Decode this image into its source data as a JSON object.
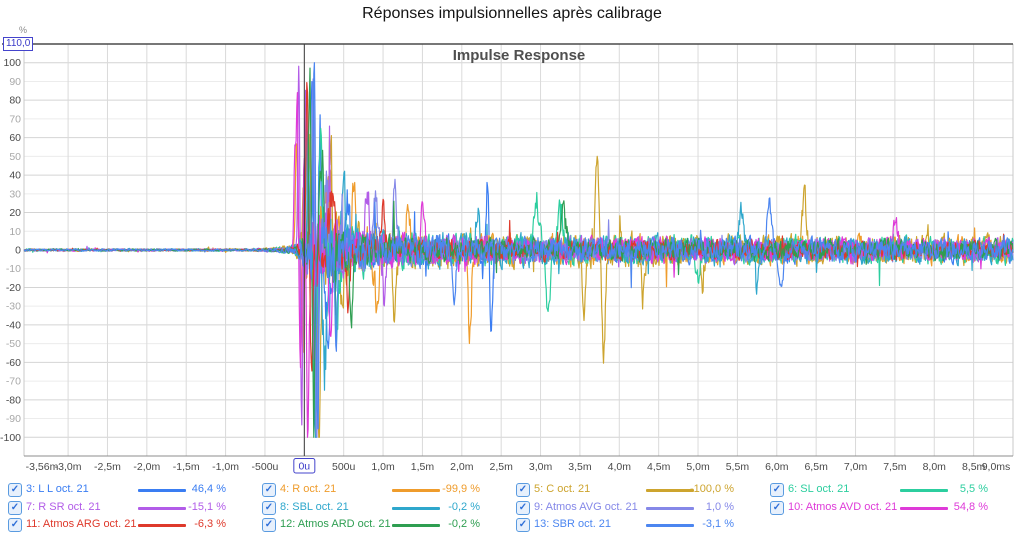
{
  "page": {
    "title": "Réponses impulsionnelles après calibrage"
  },
  "chart_data": {
    "type": "line",
    "title": "Impulse Response",
    "y_axis": {
      "unit": "%",
      "max_box_label": "110,0",
      "min": -110,
      "max": 110,
      "label_min": -100,
      "label_max": 100,
      "minor_step": 10,
      "major_step": 20
    },
    "x_axis": {
      "min": -3.56,
      "max": 9.0,
      "grid_min": -3.0,
      "grid_max": 9.0,
      "grid_step": 0.5,
      "ticks": [
        {
          "t": -3.56,
          "label": "-3,56m"
        },
        {
          "t": -3.0,
          "label": "-3,0m"
        },
        {
          "t": -2.5,
          "label": "-2,5m"
        },
        {
          "t": -2.0,
          "label": "-2,0m"
        },
        {
          "t": -1.5,
          "label": "-1,5m"
        },
        {
          "t": -1.0,
          "label": "-1,0m"
        },
        {
          "t": -0.5,
          "label": "-500u"
        },
        {
          "t": 0,
          "label": "0u"
        },
        {
          "t": 0.5,
          "label": "500u"
        },
        {
          "t": 1.0,
          "label": "1,0m"
        },
        {
          "t": 1.5,
          "label": "1,5m"
        },
        {
          "t": 2.0,
          "label": "2,0m"
        },
        {
          "t": 2.5,
          "label": "2,5m"
        },
        {
          "t": 3.0,
          "label": "3,0m"
        },
        {
          "t": 3.5,
          "label": "3,5m"
        },
        {
          "t": 4.0,
          "label": "4,0m"
        },
        {
          "t": 4.5,
          "label": "4,5m"
        },
        {
          "t": 5.0,
          "label": "5,0m"
        },
        {
          "t": 5.5,
          "label": "5,5m"
        },
        {
          "t": 6.0,
          "label": "6,0m"
        },
        {
          "t": 6.5,
          "label": "6,5m"
        },
        {
          "t": 7.0,
          "label": "7,0m"
        },
        {
          "t": 7.5,
          "label": "7,5m"
        },
        {
          "t": 8.0,
          "label": "8,0m"
        },
        {
          "t": 8.5,
          "label": "8,5m"
        },
        {
          "t": 9.0,
          "label": "9,0ms"
        }
      ]
    },
    "cursor": {
      "t": 0,
      "label": "0u"
    },
    "noise_seed": 1337,
    "envelope": [
      [
        -3.56,
        0.8
      ],
      [
        -0.7,
        0.8
      ],
      [
        -0.35,
        1.5
      ],
      [
        -0.15,
        3
      ],
      [
        -0.04,
        8
      ],
      [
        0.03,
        22
      ],
      [
        0.12,
        30
      ],
      [
        0.3,
        26
      ],
      [
        0.6,
        17
      ],
      [
        1.0,
        13
      ],
      [
        1.6,
        11
      ],
      [
        2.5,
        10
      ],
      [
        4,
        9.5
      ],
      [
        6,
        9
      ],
      [
        9,
        8.5
      ]
    ],
    "series": [
      {
        "num": 3,
        "name": "L L",
        "label": "3: L L oct. 21",
        "value": 46.4,
        "value_label": "46,4 %",
        "color": "#3A7DF2",
        "scale": 1.0,
        "events": [
          [
            0.1,
            100,
            0.02
          ],
          [
            0.14,
            -100,
            0.022
          ],
          [
            0.2,
            60,
            0.02
          ],
          [
            0.3,
            -40,
            0.03
          ],
          [
            0.55,
            28,
            0.03
          ],
          [
            2.33,
            42,
            0.025
          ],
          [
            2.37,
            -48,
            0.028
          ]
        ]
      },
      {
        "num": 4,
        "name": "R",
        "label": "4: R oct. 21",
        "value": -99.9,
        "value_label": "-99,9 %",
        "color": "#EF9C2C",
        "scale": 1.2,
        "events": [
          [
            -0.1,
            62,
            0.018
          ],
          [
            -0.02,
            -55,
            0.02
          ],
          [
            0.07,
            70,
            0.02
          ],
          [
            0.16,
            -60,
            0.025
          ],
          [
            0.33,
            38,
            0.04
          ],
          [
            0.62,
            32,
            0.04
          ],
          [
            0.92,
            -30,
            0.04
          ],
          [
            1.32,
            26,
            0.03
          ],
          [
            2.1,
            -44,
            0.03
          ]
        ]
      },
      {
        "num": 5,
        "name": "C",
        "label": "5: C oct. 21",
        "value": -100.0,
        "value_label": "-100,0 %",
        "color": "#CDA42E",
        "scale": 1.3,
        "events": [
          [
            -0.01,
            35,
            0.015
          ],
          [
            0.19,
            -100,
            0.025
          ],
          [
            0.33,
            55,
            0.028
          ],
          [
            0.48,
            -42,
            0.03
          ],
          [
            1.15,
            -32,
            0.03
          ],
          [
            3.55,
            -30,
            0.03
          ],
          [
            3.72,
            46,
            0.03
          ],
          [
            3.8,
            -52,
            0.032
          ],
          [
            4.3,
            -26,
            0.03
          ],
          [
            5.05,
            -22,
            0.03
          ],
          [
            6.35,
            26,
            0.04
          ]
        ]
      },
      {
        "num": 6,
        "name": "SL",
        "label": "6: SL oct. 21",
        "value": 5.5,
        "value_label": "5,5 %",
        "color": "#2CCE9F",
        "scale": 1.2,
        "events": [
          [
            0.03,
            75,
            0.018
          ],
          [
            0.13,
            -100,
            0.024
          ],
          [
            0.21,
            58,
            0.022
          ],
          [
            0.42,
            -45,
            0.03
          ],
          [
            2.95,
            28,
            0.04
          ],
          [
            3.1,
            -30,
            0.04
          ],
          [
            3.25,
            24,
            0.035
          ],
          [
            5.0,
            -18,
            0.03
          ]
        ]
      },
      {
        "num": 7,
        "name": "R SR",
        "label": "7: R SR oct. 21",
        "value": -15.1,
        "value_label": "-15,1 %",
        "color": "#B25CE8",
        "scale": 1.0,
        "events": [
          [
            -0.07,
            100,
            0.017
          ],
          [
            -0.035,
            -95,
            0.018
          ],
          [
            0.02,
            78,
            0.02
          ],
          [
            0.12,
            -55,
            0.025
          ],
          [
            0.3,
            30,
            0.04
          ],
          [
            0.8,
            30,
            0.04
          ],
          [
            1.02,
            -26,
            0.03
          ]
        ]
      },
      {
        "num": 8,
        "name": "SBL",
        "label": "8: SBL oct. 21",
        "value": -0.2,
        "value_label": "-0,2 %",
        "color": "#2EA7CC",
        "scale": 1.2,
        "events": [
          [
            0.05,
            70,
            0.02
          ],
          [
            0.15,
            -100,
            0.022
          ],
          [
            0.26,
            -60,
            0.03
          ],
          [
            0.5,
            40,
            0.03
          ],
          [
            2.2,
            20,
            0.03
          ],
          [
            5.55,
            22,
            0.04
          ],
          [
            5.75,
            -20,
            0.04
          ]
        ]
      },
      {
        "num": 9,
        "name": "Atmos AVG",
        "label": "9: Atmos AVG oct. 21",
        "value": 1.0,
        "value_label": "1,0 %",
        "color": "#8588E8",
        "scale": 0.9,
        "events": [
          [
            0.115,
            100,
            0.018
          ],
          [
            0.155,
            -100,
            0.02
          ],
          [
            0.28,
            45,
            0.03
          ],
          [
            0.9,
            28,
            0.04
          ],
          [
            1.15,
            30,
            0.03
          ]
        ]
      },
      {
        "num": 10,
        "name": "Atmos AVD",
        "label": "10: Atmos AVD oct. 21",
        "value": 54.8,
        "value_label": "54,8 %",
        "color": "#DE3AD8",
        "scale": 1.0,
        "events": [
          [
            -0.12,
            55,
            0.016
          ],
          [
            -0.09,
            85,
            0.016
          ],
          [
            -0.05,
            -62,
            0.02
          ],
          [
            0.0,
            52,
            0.015
          ],
          [
            0.045,
            -100,
            0.022
          ],
          [
            0.32,
            -35,
            0.04
          ],
          [
            1.5,
            22,
            0.03
          ],
          [
            7.5,
            18,
            0.04
          ]
        ]
      },
      {
        "num": 11,
        "name": "Atmos ARG",
        "label": "11: Atmos ARG oct. 21",
        "value": -6.3,
        "value_label": "-6,3 %",
        "color": "#DE392B",
        "scale": 0.8,
        "events": [
          [
            0.035,
            100,
            0.018
          ],
          [
            0.095,
            -70,
            0.02
          ],
          [
            0.35,
            34,
            0.04
          ],
          [
            0.56,
            -28,
            0.03
          ],
          [
            1.0,
            24,
            0.03
          ]
        ]
      },
      {
        "num": 12,
        "name": "Atmos ARD",
        "label": "12: Atmos ARD oct. 21",
        "value": -0.2,
        "value_label": "-0,2 %",
        "color": "#2E9E51",
        "scale": 0.9,
        "events": [
          [
            0.07,
            100,
            0.019
          ],
          [
            0.12,
            -100,
            0.021
          ],
          [
            0.22,
            50,
            0.028
          ],
          [
            0.6,
            -34,
            0.03
          ],
          [
            3.3,
            24,
            0.04
          ]
        ]
      },
      {
        "num": 13,
        "name": "SBR",
        "label": "13: SBR oct. 21",
        "value": -3.1,
        "value_label": "-3,1 %",
        "color": "#4C86F0",
        "scale": 1.0,
        "events": [
          [
            0.125,
            95,
            0.019
          ],
          [
            0.17,
            -92,
            0.02
          ],
          [
            0.4,
            -40,
            0.03
          ],
          [
            1.9,
            -24,
            0.03
          ],
          [
            5.9,
            24,
            0.04
          ],
          [
            6.05,
            -22,
            0.04
          ]
        ]
      }
    ],
    "legend": {
      "columns": 4,
      "checkbox_checked": true
    }
  }
}
